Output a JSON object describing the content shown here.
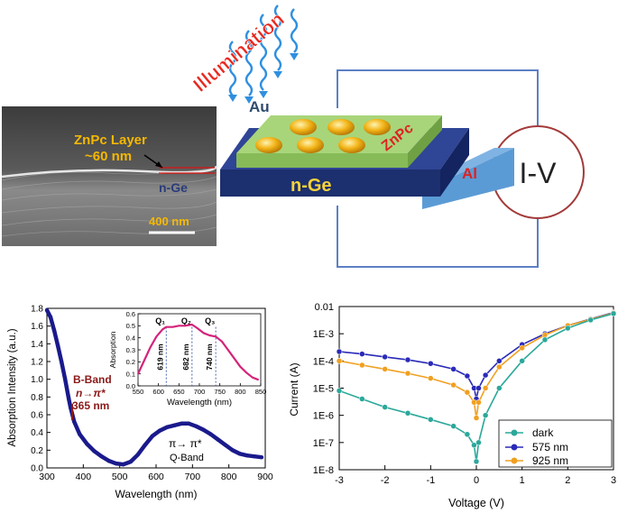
{
  "sem": {
    "label_zn": "ZnPc Layer",
    "label_thick": "~60 nm",
    "label_ge": "n-Ge",
    "scale": "400 nm"
  },
  "device": {
    "illumination": "Illumination",
    "au": "Au",
    "znpc": "ZnPc",
    "nge": "n-Ge",
    "al": "Al",
    "iv": "I-V"
  },
  "colors": {
    "nge_layer": "#1c2f6e",
    "znpc_layer": "#a8d57a",
    "al_layer": "#5b9bd5",
    "au_dot": "#f2b316",
    "circuit": "#5b7fc4",
    "iv_circle": "#a33a3a",
    "wave": "#2f8fe0",
    "illum_text": "#e8281f",
    "absorption_main": "#1a1a8c",
    "absorption_inset": "#d4237a",
    "dark": "#2ba89a",
    "n575": "#2a2ab8",
    "n925": "#f0a020"
  },
  "chart_data": [
    {
      "type": "line",
      "xlabel": "Wavelength (nm)",
      "ylabel": "Absorption Intensity (a.u.)",
      "xlim": [
        300,
        900
      ],
      "ylim": [
        0.0,
        1.8
      ],
      "xticks": [
        300,
        400,
        500,
        600,
        700,
        800,
        900
      ],
      "yticks": [
        0.0,
        0.2,
        0.4,
        0.6,
        0.8,
        1.0,
        1.2,
        1.4,
        1.6,
        1.8
      ],
      "series": [
        {
          "x": [
            300,
            310,
            320,
            330,
            340,
            350,
            360,
            365,
            375,
            390,
            410,
            430,
            450,
            470,
            490,
            510,
            530,
            550,
            570,
            590,
            610,
            630,
            650,
            670,
            690,
            710,
            730,
            750,
            770,
            790,
            810,
            830,
            850,
            870,
            890
          ],
          "y": [
            1.78,
            1.7,
            1.55,
            1.38,
            1.2,
            1.0,
            0.78,
            0.68,
            0.52,
            0.38,
            0.27,
            0.19,
            0.13,
            0.08,
            0.05,
            0.04,
            0.07,
            0.15,
            0.26,
            0.36,
            0.42,
            0.46,
            0.48,
            0.5,
            0.5,
            0.47,
            0.43,
            0.38,
            0.32,
            0.26,
            0.2,
            0.16,
            0.14,
            0.13,
            0.12
          ]
        }
      ],
      "annotations": {
        "b_band": "B-Band",
        "b_transition": "n→π*",
        "b_peak": "365 nm",
        "q_transition": "π→ π*",
        "q_band": "Q-Band"
      },
      "inset": {
        "type": "line",
        "xlabel": "Wavelength (nm)",
        "ylabel": "Absorption",
        "xlim": [
          550,
          850
        ],
        "ylim": [
          0.0,
          0.6
        ],
        "xticks": [
          550,
          600,
          650,
          700,
          750,
          800,
          850
        ],
        "yticks": [
          0.0,
          0.1,
          0.2,
          0.3,
          0.4,
          0.5,
          0.6
        ],
        "series": [
          {
            "x": [
              550,
              565,
              580,
              595,
              610,
              619,
              635,
              650,
              665,
              682,
              695,
              710,
              725,
              740,
              755,
              770,
              785,
              800,
              815,
              830,
              845
            ],
            "y": [
              0.1,
              0.21,
              0.32,
              0.41,
              0.47,
              0.49,
              0.49,
              0.5,
              0.5,
              0.51,
              0.48,
              0.44,
              0.42,
              0.41,
              0.37,
              0.3,
              0.23,
              0.16,
              0.11,
              0.07,
              0.05
            ]
          }
        ],
        "peaks": [
          {
            "label": "Q₁",
            "value": "619 nm",
            "x": 619
          },
          {
            "label": "Q₂",
            "value": "682 nm",
            "x": 682
          },
          {
            "label": "Q₃",
            "value": "740 nm",
            "x": 740
          }
        ]
      }
    },
    {
      "type": "scatter",
      "xlabel": "Voltage (V)",
      "ylabel": "Current (A)",
      "xlim": [
        -3,
        3
      ],
      "ylim": [
        1e-08,
        0.01
      ],
      "yscale": "log",
      "xticks": [
        -3,
        -2,
        -1,
        0,
        1,
        2,
        3
      ],
      "yticks": [
        "1E-8",
        "1E-7",
        "1E-6",
        "1E-5",
        "1E-4",
        "1E-3",
        "0.01"
      ],
      "legend_position": "bottom-right",
      "series": [
        {
          "name": "dark",
          "x": [
            -3,
            -2.5,
            -2,
            -1.5,
            -1,
            -0.5,
            -0.2,
            -0.05,
            0,
            0.05,
            0.2,
            0.5,
            1,
            1.5,
            2,
            2.5,
            3
          ],
          "y": [
            8e-06,
            4e-06,
            2e-06,
            1.2e-06,
            7e-07,
            4e-07,
            2e-07,
            8e-08,
            2e-08,
            1e-07,
            1e-06,
            1e-05,
            0.0001,
            0.0006,
            0.0016,
            0.0032,
            0.0055
          ]
        },
        {
          "name": "575 nm",
          "x": [
            -3,
            -2.5,
            -2,
            -1.5,
            -1,
            -0.5,
            -0.2,
            -0.05,
            0,
            0.05,
            0.2,
            0.5,
            1,
            1.5,
            2,
            2.5,
            3
          ],
          "y": [
            0.00022,
            0.00018,
            0.00014,
            0.00011,
            8e-05,
            5e-05,
            2.8e-05,
            1e-05,
            4e-06,
            1e-05,
            3e-05,
            0.0001,
            0.0004,
            0.001,
            0.002,
            0.0035,
            0.006
          ]
        },
        {
          "name": "925 nm",
          "x": [
            -3,
            -2.5,
            -2,
            -1.5,
            -1,
            -0.5,
            -0.2,
            -0.05,
            0,
            0.05,
            0.2,
            0.5,
            1,
            1.5,
            2,
            2.5,
            3
          ],
          "y": [
            0.0001,
            7e-05,
            5e-05,
            3.5e-05,
            2.3e-05,
            1.3e-05,
            7e-06,
            3e-06,
            8e-07,
            3e-06,
            1e-05,
            6e-05,
            0.0003,
            0.0009,
            0.002,
            0.0034,
            0.0058
          ]
        }
      ]
    }
  ]
}
